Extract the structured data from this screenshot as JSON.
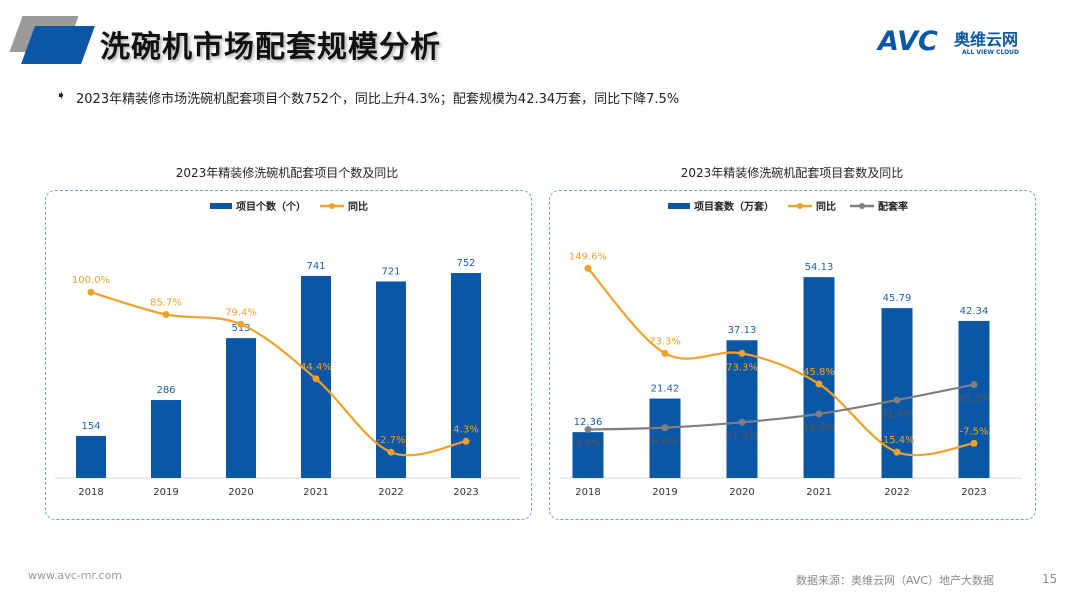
{
  "header": {
    "title": "洗碗机市场配套规模分析",
    "logo_text": "AVC",
    "logo_cn": "奥维云网",
    "logo_en": "ALL VIEW CLOUD"
  },
  "summary": "2023年精装修市场洗碗机配套项目个数752个，同比上升4.3%；配套规模为42.34万套，同比下降7.5%",
  "colors": {
    "bar": "#0c57a5",
    "yoy": "#f2a02a",
    "rate": "#7f7f7f",
    "label_bar": "#1f5fa8",
    "label_yoy": "#f2a02a"
  },
  "chart_data": [
    {
      "type": "bar",
      "title": "2023年精装修洗碗机配套项目个数及同比",
      "categories": [
        "2018",
        "2019",
        "2020",
        "2021",
        "2022",
        "2023"
      ],
      "series": [
        {
          "name": "项目个数（个）",
          "kind": "bar",
          "values": [
            154,
            286,
            513,
            741,
            721,
            752
          ],
          "labels": [
            "154",
            "286",
            "513",
            "741",
            "721",
            "752"
          ]
        },
        {
          "name": "同比",
          "kind": "line",
          "values": [
            100.0,
            85.7,
            79.4,
            44.4,
            -2.7,
            4.3
          ],
          "labels": [
            "100.0%",
            "85.7%",
            "79.4%",
            "44.4%",
            "-2.7%",
            "4.3%"
          ]
        }
      ],
      "legend": "top"
    },
    {
      "type": "bar",
      "title": "2023年精装修洗碗机配套项目套数及同比",
      "categories": [
        "2018",
        "2019",
        "2020",
        "2021",
        "2022",
        "2023"
      ],
      "series": [
        {
          "name": "项目套数（万套）",
          "kind": "bar",
          "values": [
            12.36,
            21.42,
            37.13,
            54.13,
            45.79,
            42.34
          ],
          "labels": [
            "12.36",
            "21.42",
            "37.13",
            "54.13",
            "45.79",
            "42.34"
          ]
        },
        {
          "name": "同比",
          "kind": "line",
          "values": [
            149.6,
            73.3,
            73.3,
            45.8,
            -15.4,
            -7.5
          ],
          "labels": [
            "149.6%",
            "73.3%",
            "73.3%",
            "45.8%",
            "-15.4%",
            "-7.5%"
          ]
        },
        {
          "name": "配套率",
          "kind": "line",
          "values": [
            4.9,
            6.6,
            11.4,
            18.9,
            31.4,
            45.3
          ],
          "labels": [
            "4.9%",
            "6.6%",
            "11.4%",
            "18.9%",
            "31.4%",
            "45.3%"
          ]
        }
      ],
      "legend": "top"
    }
  ],
  "footer": {
    "url": "www.avc-mr.com",
    "source": "数据来源：奥维云网（AVC）地产大数据",
    "page": "15"
  }
}
